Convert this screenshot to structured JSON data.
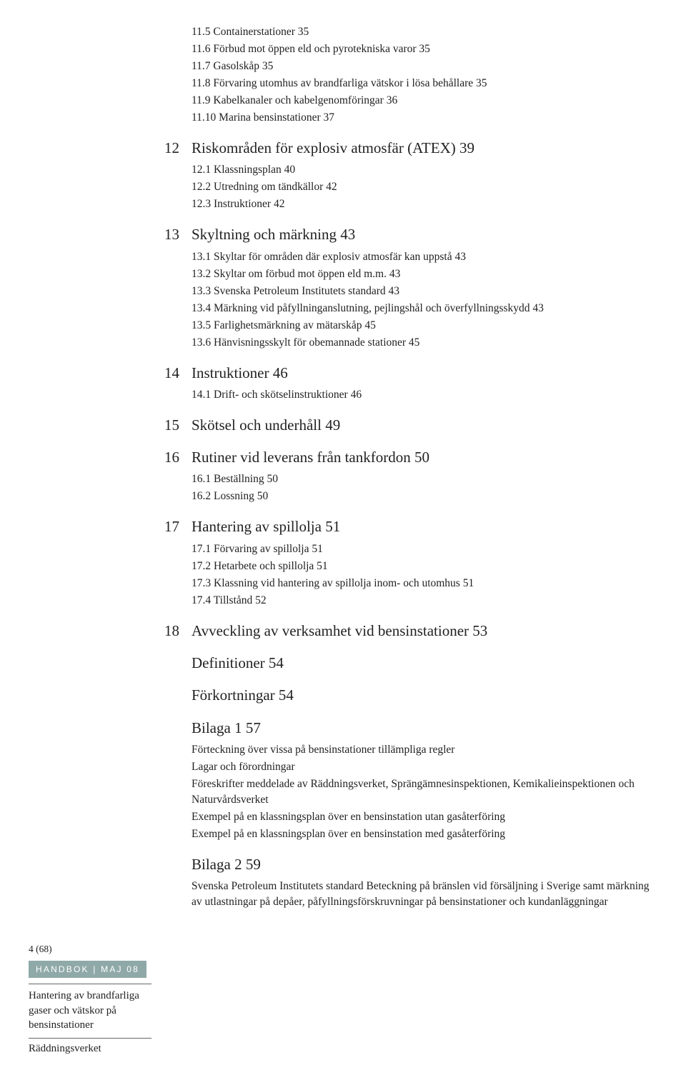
{
  "colors": {
    "text": "#222222",
    "background": "#ffffff",
    "handbok_bg": "#8fa9a8",
    "handbok_text": "#ffffff",
    "rule": "#666666"
  },
  "typography": {
    "body_font": "Georgia, Times New Roman, serif",
    "sub_fontsize": 15.5,
    "sec_fontsize": 21,
    "footer_fontsize": 15
  },
  "pre_subs": [
    "11.5 Containerstationer 35",
    "11.6 Förbud mot öppen eld och pyrotekniska varor 35",
    "11.7 Gasolskåp 35",
    "11.8 Förvaring utomhus av brandfarliga vätskor i lösa behållare 35",
    "11.9 Kabelkanaler och kabelgenomföringar 36",
    "11.10 Marina bensinstationer 37"
  ],
  "sections": [
    {
      "num": "12",
      "title": "Riskområden för explosiv atmosfär (ATEX) 39",
      "subs": [
        "12.1 Klassningsplan 40",
        "12.2 Utredning om tändkällor 42",
        "12.3 Instruktioner 42"
      ]
    },
    {
      "num": "13",
      "title": "Skyltning och märkning 43",
      "subs": [
        "13.1 Skyltar för områden där explosiv atmosfär kan uppstå 43",
        "13.2 Skyltar om förbud mot öppen eld m.m. 43",
        "13.3 Svenska Petroleum Institutets standard 43",
        "13.4 Märkning vid påfyllninganslutning, pejlingshål och överfyllningsskydd 43",
        "13.5 Farlighetsmärkning av mätarskåp 45",
        "13.6 Hänvisningsskylt för obemannade stationer 45"
      ]
    },
    {
      "num": "14",
      "title": "Instruktioner 46",
      "subs": [
        "14.1 Drift- och skötselinstruktioner 46"
      ]
    },
    {
      "num": "15",
      "title": "Skötsel och underhåll 49",
      "subs": []
    },
    {
      "num": "16",
      "title": "Rutiner vid leverans från tankfordon 50",
      "subs": [
        "16.1 Beställning 50",
        "16.2 Lossning 50"
      ]
    },
    {
      "num": "17",
      "title": "Hantering av spillolja 51",
      "subs": [
        "17.1 Förvaring av spillolja 51",
        "17.2 Hetarbete och spillolja 51",
        "17.3 Klassning vid hantering av spillolja inom- och utomhus 51",
        "17.4 Tillstånd 52"
      ]
    },
    {
      "num": "18",
      "title": "Avveckling av verksamhet vid bensinstationer 53",
      "subs": []
    }
  ],
  "tail_sections": [
    {
      "title": "Definitioner 54",
      "desc": []
    },
    {
      "title": "Förkortningar 54",
      "desc": []
    },
    {
      "title": "Bilaga 1 57",
      "desc": [
        "Förteckning över vissa på bensinstationer tillämpliga regler",
        "Lagar och förordningar",
        "Föreskrifter meddelade av Räddningsverket, Sprängämnesinspektionen, Kemikalieinspektionen och Naturvårdsverket",
        "Exempel på en klassningsplan över en bensinstation utan gasåterföring",
        "Exempel på en klassningsplan över en bensinstation med gasåterföring"
      ]
    },
    {
      "title": "Bilaga 2 59",
      "desc": [
        "Svenska Petroleum Institutets standard Beteckning på bränslen vid försäljning i Sverige samt märkning av utlastningar på depåer, påfyllningsförskruvningar på bensinstationer och kundanläggningar"
      ]
    }
  ],
  "footer": {
    "page_num": "4 (68)",
    "handbok": "HANDBOK | MAJ 08",
    "title": "Hantering av brandfarliga gaser och vätskor på bensinstationer",
    "org": "Räddningsverket"
  }
}
